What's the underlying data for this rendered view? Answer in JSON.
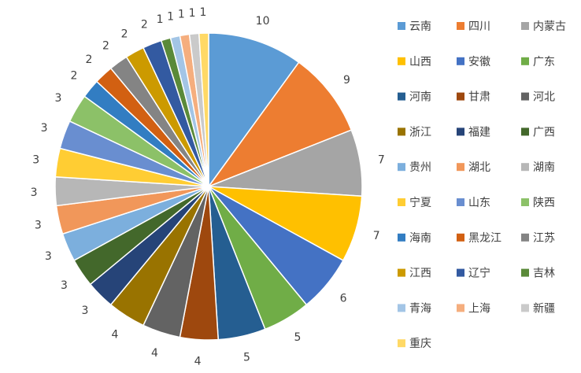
{
  "chart_data": {
    "type": "pie",
    "title": "",
    "categories": [
      "云南",
      "四川",
      "内蒙古",
      "山西",
      "安徽",
      "广东",
      "河南",
      "甘肃",
      "河北",
      "浙江",
      "福建",
      "广西",
      "贵州",
      "湖北",
      "湖南",
      "宁夏",
      "山东",
      "陕西",
      "海南",
      "黑龙江",
      "江苏",
      "江西",
      "辽宁",
      "吉林",
      "青海",
      "上海",
      "新疆",
      "重庆"
    ],
    "values": [
      10,
      9,
      7,
      7,
      6,
      5,
      5,
      4,
      4,
      4,
      3,
      3,
      3,
      3,
      3,
      3,
      3,
      3,
      2,
      2,
      2,
      2,
      2,
      1,
      1,
      1,
      1,
      1
    ],
    "colors": [
      "#5B9BD5",
      "#ED7D31",
      "#A5A5A5",
      "#FFC000",
      "#4472C4",
      "#70AD47",
      "#255E91",
      "#9E480E",
      "#636363",
      "#997300",
      "#264478",
      "#43682B",
      "#7CAFDD",
      "#F1975A",
      "#B7B7B7",
      "#FFCD33",
      "#698ED0",
      "#8CC168",
      "#327DC2",
      "#D26012",
      "#848484",
      "#CC9A00",
      "#335AA1",
      "#5A8A39",
      "#A3C5E6",
      "#F5AE7E",
      "#CACACA",
      "#FFD966"
    ],
    "legend_position": "right",
    "data_labels": true
  }
}
